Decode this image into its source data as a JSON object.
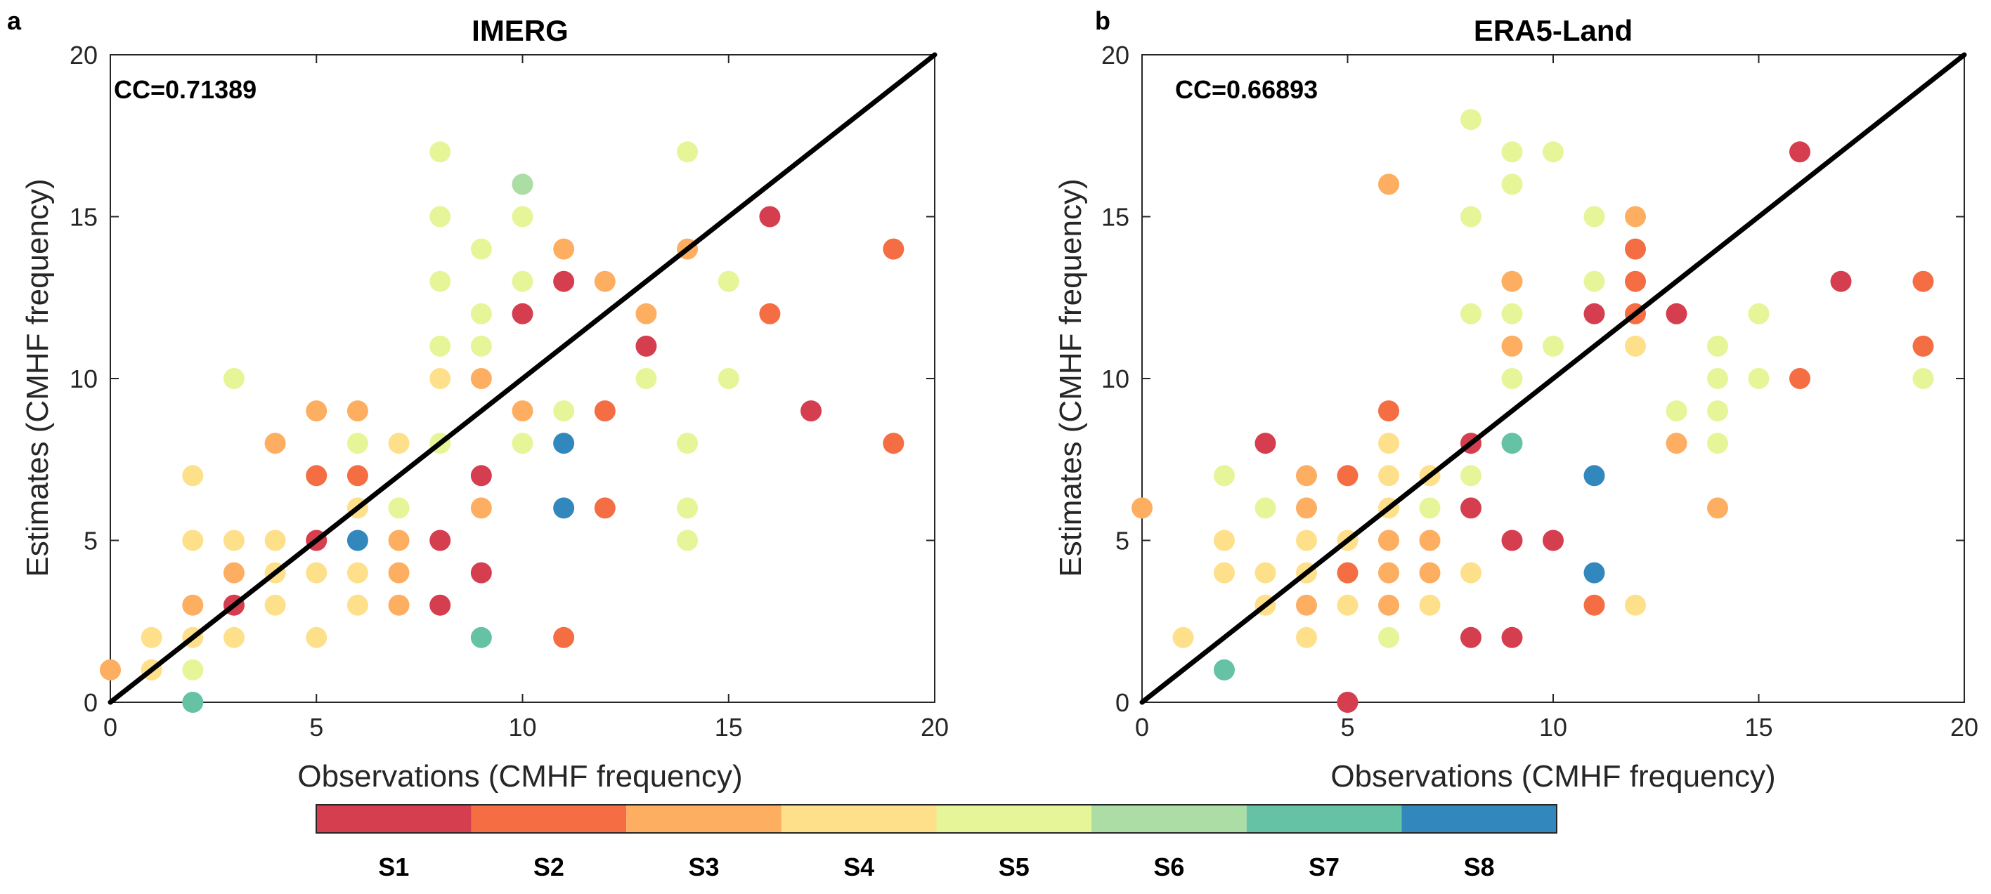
{
  "colors": {
    "S1": "#d53e4f",
    "S2": "#f46d43",
    "S3": "#fdae61",
    "S4": "#fee08b",
    "S5": "#e6f598",
    "S6": "#abdda4",
    "S7": "#66c2a5",
    "S8": "#3288bd",
    "line": "#000000",
    "axis": "#262626"
  },
  "chart_data": [
    {
      "type": "scatter",
      "panel_label": "a",
      "title": "IMERG",
      "annotation": "CC=0.71389",
      "xlabel": "Observations (CMHF frequency)",
      "ylabel": "Estimates (CMHF frequency)",
      "xlim": [
        0,
        20
      ],
      "ylim": [
        0,
        20
      ],
      "xticks": [
        "0",
        "5",
        "10",
        "15",
        "20"
      ],
      "yticks": [
        "0",
        "5",
        "10",
        "15",
        "20"
      ],
      "reference_line": "1:1",
      "points": [
        {
          "x": 0,
          "y": 1,
          "s": "S3"
        },
        {
          "x": 1,
          "y": 1,
          "s": "S4"
        },
        {
          "x": 1,
          "y": 2,
          "s": "S4"
        },
        {
          "x": 2,
          "y": 0,
          "s": "S7"
        },
        {
          "x": 2,
          "y": 1,
          "s": "S5"
        },
        {
          "x": 2,
          "y": 2,
          "s": "S4"
        },
        {
          "x": 2,
          "y": 3,
          "s": "S3"
        },
        {
          "x": 2,
          "y": 5,
          "s": "S4"
        },
        {
          "x": 2,
          "y": 7,
          "s": "S4"
        },
        {
          "x": 3,
          "y": 2,
          "s": "S4"
        },
        {
          "x": 3,
          "y": 3,
          "s": "S1"
        },
        {
          "x": 3,
          "y": 4,
          "s": "S3"
        },
        {
          "x": 3,
          "y": 5,
          "s": "S4"
        },
        {
          "x": 3,
          "y": 10,
          "s": "S5"
        },
        {
          "x": 4,
          "y": 3,
          "s": "S4"
        },
        {
          "x": 4,
          "y": 4,
          "s": "S4"
        },
        {
          "x": 4,
          "y": 5,
          "s": "S4"
        },
        {
          "x": 4,
          "y": 8,
          "s": "S3"
        },
        {
          "x": 5,
          "y": 2,
          "s": "S4"
        },
        {
          "x": 5,
          "y": 4,
          "s": "S4"
        },
        {
          "x": 5,
          "y": 5,
          "s": "S1"
        },
        {
          "x": 5,
          "y": 7,
          "s": "S2"
        },
        {
          "x": 5,
          "y": 9,
          "s": "S3"
        },
        {
          "x": 6,
          "y": 3,
          "s": "S4"
        },
        {
          "x": 6,
          "y": 4,
          "s": "S4"
        },
        {
          "x": 6,
          "y": 5,
          "s": "S8"
        },
        {
          "x": 6,
          "y": 6,
          "s": "S4"
        },
        {
          "x": 6,
          "y": 7,
          "s": "S2"
        },
        {
          "x": 6,
          "y": 8,
          "s": "S5"
        },
        {
          "x": 6,
          "y": 9,
          "s": "S3"
        },
        {
          "x": 7,
          "y": 3,
          "s": "S3"
        },
        {
          "x": 7,
          "y": 4,
          "s": "S3"
        },
        {
          "x": 7,
          "y": 5,
          "s": "S3"
        },
        {
          "x": 7,
          "y": 6,
          "s": "S5"
        },
        {
          "x": 7,
          "y": 8,
          "s": "S4"
        },
        {
          "x": 8,
          "y": 3,
          "s": "S1"
        },
        {
          "x": 8,
          "y": 5,
          "s": "S1"
        },
        {
          "x": 8,
          "y": 8,
          "s": "S5"
        },
        {
          "x": 8,
          "y": 10,
          "s": "S4"
        },
        {
          "x": 8,
          "y": 11,
          "s": "S5"
        },
        {
          "x": 8,
          "y": 13,
          "s": "S5"
        },
        {
          "x": 8,
          "y": 15,
          "s": "S5"
        },
        {
          "x": 8,
          "y": 17,
          "s": "S5"
        },
        {
          "x": 9,
          "y": 2,
          "s": "S7"
        },
        {
          "x": 9,
          "y": 4,
          "s": "S1"
        },
        {
          "x": 9,
          "y": 6,
          "s": "S3"
        },
        {
          "x": 9,
          "y": 7,
          "s": "S1"
        },
        {
          "x": 9,
          "y": 10,
          "s": "S3"
        },
        {
          "x": 9,
          "y": 11,
          "s": "S5"
        },
        {
          "x": 9,
          "y": 12,
          "s": "S5"
        },
        {
          "x": 9,
          "y": 14,
          "s": "S5"
        },
        {
          "x": 10,
          "y": 8,
          "s": "S5"
        },
        {
          "x": 10,
          "y": 9,
          "s": "S3"
        },
        {
          "x": 10,
          "y": 12,
          "s": "S1"
        },
        {
          "x": 10,
          "y": 13,
          "s": "S5"
        },
        {
          "x": 10,
          "y": 15,
          "s": "S5"
        },
        {
          "x": 10,
          "y": 16,
          "s": "S6"
        },
        {
          "x": 11,
          "y": 2,
          "s": "S2"
        },
        {
          "x": 11,
          "y": 6,
          "s": "S8"
        },
        {
          "x": 11,
          "y": 8,
          "s": "S8"
        },
        {
          "x": 11,
          "y": 9,
          "s": "S5"
        },
        {
          "x": 11,
          "y": 13,
          "s": "S1"
        },
        {
          "x": 11,
          "y": 14,
          "s": "S3"
        },
        {
          "x": 12,
          "y": 6,
          "s": "S2"
        },
        {
          "x": 12,
          "y": 9,
          "s": "S2"
        },
        {
          "x": 12,
          "y": 13,
          "s": "S3"
        },
        {
          "x": 13,
          "y": 10,
          "s": "S5"
        },
        {
          "x": 13,
          "y": 11,
          "s": "S1"
        },
        {
          "x": 13,
          "y": 12,
          "s": "S3"
        },
        {
          "x": 14,
          "y": 5,
          "s": "S5"
        },
        {
          "x": 14,
          "y": 6,
          "s": "S5"
        },
        {
          "x": 14,
          "y": 8,
          "s": "S5"
        },
        {
          "x": 14,
          "y": 14,
          "s": "S3"
        },
        {
          "x": 14,
          "y": 17,
          "s": "S5"
        },
        {
          "x": 15,
          "y": 10,
          "s": "S5"
        },
        {
          "x": 15,
          "y": 13,
          "s": "S5"
        },
        {
          "x": 16,
          "y": 12,
          "s": "S2"
        },
        {
          "x": 16,
          "y": 15,
          "s": "S1"
        },
        {
          "x": 17,
          "y": 9,
          "s": "S1"
        },
        {
          "x": 19,
          "y": 8,
          "s": "S2"
        },
        {
          "x": 19,
          "y": 14,
          "s": "S2"
        }
      ]
    },
    {
      "type": "scatter",
      "panel_label": "b",
      "title": "ERA5-Land",
      "annotation": "CC=0.66893",
      "xlabel": "Observations (CMHF frequency)",
      "ylabel": "Estimates (CMHF frequency)",
      "xlim": [
        0,
        20
      ],
      "ylim": [
        0,
        20
      ],
      "xticks": [
        "0",
        "5",
        "10",
        "15",
        "20"
      ],
      "yticks": [
        "0",
        "5",
        "10",
        "15",
        "20"
      ],
      "reference_line": "1:1",
      "points": [
        {
          "x": 0,
          "y": 6,
          "s": "S3"
        },
        {
          "x": 1,
          "y": 2,
          "s": "S4"
        },
        {
          "x": 2,
          "y": 1,
          "s": "S7"
        },
        {
          "x": 2,
          "y": 4,
          "s": "S4"
        },
        {
          "x": 2,
          "y": 5,
          "s": "S4"
        },
        {
          "x": 2,
          "y": 7,
          "s": "S5"
        },
        {
          "x": 3,
          "y": 3,
          "s": "S4"
        },
        {
          "x": 3,
          "y": 4,
          "s": "S4"
        },
        {
          "x": 3,
          "y": 6,
          "s": "S5"
        },
        {
          "x": 3,
          "y": 8,
          "s": "S1"
        },
        {
          "x": 4,
          "y": 2,
          "s": "S4"
        },
        {
          "x": 4,
          "y": 3,
          "s": "S3"
        },
        {
          "x": 4,
          "y": 4,
          "s": "S4"
        },
        {
          "x": 4,
          "y": 5,
          "s": "S4"
        },
        {
          "x": 4,
          "y": 6,
          "s": "S3"
        },
        {
          "x": 4,
          "y": 7,
          "s": "S3"
        },
        {
          "x": 5,
          "y": 0,
          "s": "S1"
        },
        {
          "x": 5,
          "y": 3,
          "s": "S4"
        },
        {
          "x": 5,
          "y": 4,
          "s": "S2"
        },
        {
          "x": 5,
          "y": 5,
          "s": "S4"
        },
        {
          "x": 5,
          "y": 7,
          "s": "S2"
        },
        {
          "x": 6,
          "y": 2,
          "s": "S5"
        },
        {
          "x": 6,
          "y": 3,
          "s": "S3"
        },
        {
          "x": 6,
          "y": 4,
          "s": "S3"
        },
        {
          "x": 6,
          "y": 5,
          "s": "S3"
        },
        {
          "x": 6,
          "y": 6,
          "s": "S4"
        },
        {
          "x": 6,
          "y": 7,
          "s": "S4"
        },
        {
          "x": 6,
          "y": 8,
          "s": "S4"
        },
        {
          "x": 6,
          "y": 9,
          "s": "S2"
        },
        {
          "x": 6,
          "y": 16,
          "s": "S3"
        },
        {
          "x": 7,
          "y": 3,
          "s": "S4"
        },
        {
          "x": 7,
          "y": 4,
          "s": "S3"
        },
        {
          "x": 7,
          "y": 5,
          "s": "S3"
        },
        {
          "x": 7,
          "y": 6,
          "s": "S5"
        },
        {
          "x": 7,
          "y": 7,
          "s": "S4"
        },
        {
          "x": 8,
          "y": 2,
          "s": "S1"
        },
        {
          "x": 8,
          "y": 4,
          "s": "S4"
        },
        {
          "x": 8,
          "y": 6,
          "s": "S1"
        },
        {
          "x": 8,
          "y": 7,
          "s": "S5"
        },
        {
          "x": 8,
          "y": 8,
          "s": "S1"
        },
        {
          "x": 8,
          "y": 12,
          "s": "S5"
        },
        {
          "x": 8,
          "y": 15,
          "s": "S5"
        },
        {
          "x": 8,
          "y": 18,
          "s": "S5"
        },
        {
          "x": 9,
          "y": 2,
          "s": "S1"
        },
        {
          "x": 9,
          "y": 5,
          "s": "S1"
        },
        {
          "x": 9,
          "y": 8,
          "s": "S7"
        },
        {
          "x": 9,
          "y": 10,
          "s": "S5"
        },
        {
          "x": 9,
          "y": 11,
          "s": "S3"
        },
        {
          "x": 9,
          "y": 12,
          "s": "S5"
        },
        {
          "x": 9,
          "y": 13,
          "s": "S3"
        },
        {
          "x": 9,
          "y": 16,
          "s": "S5"
        },
        {
          "x": 9,
          "y": 17,
          "s": "S5"
        },
        {
          "x": 10,
          "y": 5,
          "s": "S1"
        },
        {
          "x": 10,
          "y": 11,
          "s": "S5"
        },
        {
          "x": 10,
          "y": 17,
          "s": "S5"
        },
        {
          "x": 11,
          "y": 3,
          "s": "S2"
        },
        {
          "x": 11,
          "y": 4,
          "s": "S8"
        },
        {
          "x": 11,
          "y": 7,
          "s": "S8"
        },
        {
          "x": 11,
          "y": 12,
          "s": "S1"
        },
        {
          "x": 11,
          "y": 13,
          "s": "S5"
        },
        {
          "x": 11,
          "y": 15,
          "s": "S5"
        },
        {
          "x": 12,
          "y": 3,
          "s": "S4"
        },
        {
          "x": 12,
          "y": 11,
          "s": "S4"
        },
        {
          "x": 12,
          "y": 12,
          "s": "S2"
        },
        {
          "x": 12,
          "y": 13,
          "s": "S2"
        },
        {
          "x": 12,
          "y": 14,
          "s": "S2"
        },
        {
          "x": 12,
          "y": 15,
          "s": "S3"
        },
        {
          "x": 13,
          "y": 8,
          "s": "S3"
        },
        {
          "x": 13,
          "y": 9,
          "s": "S5"
        },
        {
          "x": 13,
          "y": 12,
          "s": "S1"
        },
        {
          "x": 14,
          "y": 6,
          "s": "S3"
        },
        {
          "x": 14,
          "y": 8,
          "s": "S5"
        },
        {
          "x": 14,
          "y": 9,
          "s": "S5"
        },
        {
          "x": 14,
          "y": 10,
          "s": "S5"
        },
        {
          "x": 14,
          "y": 11,
          "s": "S5"
        },
        {
          "x": 15,
          "y": 10,
          "s": "S5"
        },
        {
          "x": 15,
          "y": 12,
          "s": "S5"
        },
        {
          "x": 16,
          "y": 10,
          "s": "S2"
        },
        {
          "x": 16,
          "y": 17,
          "s": "S1"
        },
        {
          "x": 17,
          "y": 13,
          "s": "S1"
        },
        {
          "x": 19,
          "y": 10,
          "s": "S5"
        },
        {
          "x": 19,
          "y": 11,
          "s": "S2"
        },
        {
          "x": 19,
          "y": 13,
          "s": "S2"
        }
      ]
    }
  ],
  "colorbar": {
    "labels": [
      "S1",
      "S2",
      "S3",
      "S4",
      "S5",
      "S6",
      "S7",
      "S8"
    ]
  }
}
